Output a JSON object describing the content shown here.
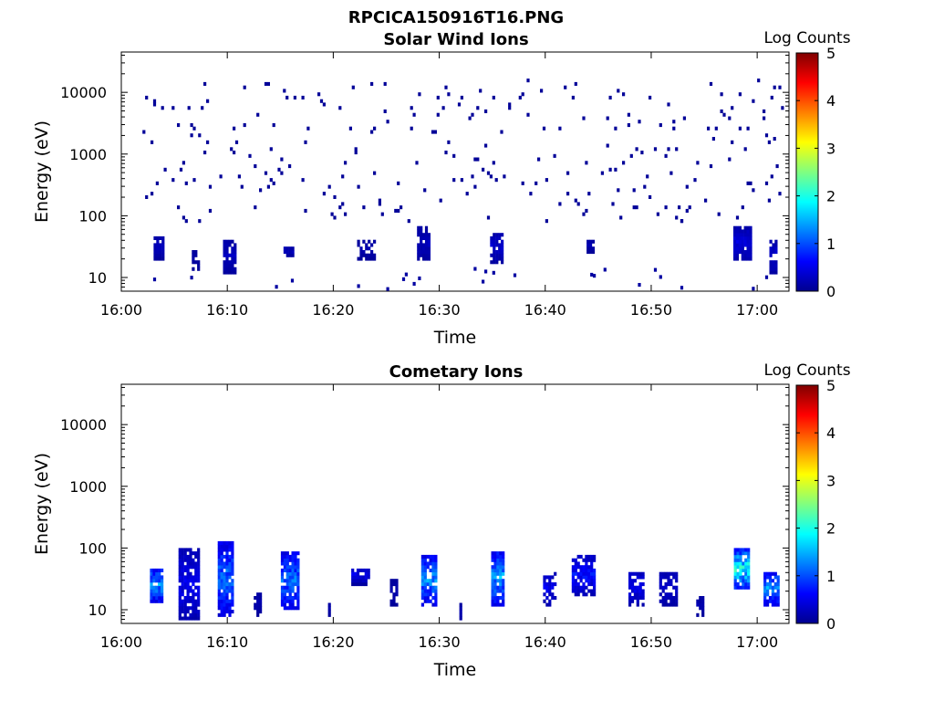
{
  "figure_title": "RPCICA150916T16.PNG",
  "colormap": [
    "#00008f",
    "#0000ff",
    "#0080ff",
    "#00ffff",
    "#80ff80",
    "#ffff00",
    "#ff8000",
    "#ff0000",
    "#800000"
  ],
  "chart_data": [
    {
      "type": "heatmap",
      "title": "Solar Wind Ions",
      "xlabel": "Time",
      "ylabel": "Energy (eV)",
      "colorbar_label": "Log Counts",
      "x_ticks": [
        "16:00",
        "16:10",
        "16:20",
        "16:30",
        "16:40",
        "16:50",
        "17:00"
      ],
      "y_ticks": [
        "10",
        "100",
        "1000",
        "10000"
      ],
      "colorbar_ticks": [
        "0",
        "1",
        "2",
        "3",
        "4",
        "5"
      ],
      "xlim_minutes_after_1600": [
        0,
        63
      ],
      "ylim_eV": [
        6,
        45000
      ],
      "y_scale": "log",
      "clim": [
        0,
        5
      ],
      "scatter_energy_range_eV": [
        80,
        15000
      ],
      "clusters": [
        {
          "t": 3.5,
          "e": [
            20,
            45
          ],
          "w": 0.9,
          "v": 0.3,
          "density": 0.9
        },
        {
          "t": 7.0,
          "e": [
            14,
            28
          ],
          "w": 0.7,
          "v": 0.15,
          "density": 0.6
        },
        {
          "t": 10.1,
          "e": [
            12,
            40
          ],
          "w": 1.0,
          "v": 0.3,
          "density": 0.85
        },
        {
          "t": 15.7,
          "e": [
            22,
            30
          ],
          "w": 0.8,
          "v": 0.3,
          "density": 0.9
        },
        {
          "t": 23.0,
          "e": [
            20,
            40
          ],
          "w": 1.5,
          "v": 0.2,
          "density": 0.6
        },
        {
          "t": 28.5,
          "e": [
            20,
            60
          ],
          "w": 1.2,
          "v": 0.3,
          "density": 0.85
        },
        {
          "t": 35.3,
          "e": [
            18,
            50
          ],
          "w": 1.0,
          "v": 0.4,
          "density": 0.85
        },
        {
          "t": 44.2,
          "e": [
            25,
            40
          ],
          "w": 0.6,
          "v": 0.2,
          "density": 0.8
        },
        {
          "t": 58.5,
          "e": [
            20,
            60
          ],
          "w": 1.5,
          "v": 0.5,
          "density": 0.9
        },
        {
          "t": 61.5,
          "e": [
            12,
            40
          ],
          "w": 0.7,
          "v": 0.4,
          "density": 0.8
        }
      ]
    },
    {
      "type": "heatmap",
      "title": "Cometary Ions",
      "xlabel": "Time",
      "ylabel": "Energy (eV)",
      "colorbar_label": "Log Counts",
      "x_ticks": [
        "16:00",
        "16:10",
        "16:20",
        "16:30",
        "16:40",
        "16:50",
        "17:00"
      ],
      "y_ticks": [
        "10",
        "100",
        "1000",
        "10000"
      ],
      "colorbar_ticks": [
        "0",
        "1",
        "2",
        "3",
        "4",
        "5"
      ],
      "xlim_minutes_after_1600": [
        0,
        63
      ],
      "ylim_eV": [
        6,
        45000
      ],
      "y_scale": "log",
      "clim": [
        0,
        5
      ],
      "clusters": [
        {
          "t": 3.3,
          "e": [
            13,
            45
          ],
          "w": 1.2,
          "v": 1.6,
          "density": 0.95
        },
        {
          "t": 6.3,
          "e": [
            7,
            90
          ],
          "w": 1.8,
          "v": 0.6,
          "density": 0.85
        },
        {
          "t": 9.8,
          "e": [
            8,
            120
          ],
          "w": 1.4,
          "v": 1.3,
          "density": 0.9
        },
        {
          "t": 12.8,
          "e": [
            8,
            18
          ],
          "w": 0.6,
          "v": 0.2,
          "density": 0.7
        },
        {
          "t": 15.8,
          "e": [
            10,
            85
          ],
          "w": 1.5,
          "v": 1.3,
          "density": 0.85
        },
        {
          "t": 19.6,
          "e": [
            8,
            14
          ],
          "w": 0.2,
          "v": 0.2,
          "density": 0.9
        },
        {
          "t": 22.5,
          "e": [
            27,
            45
          ],
          "w": 1.6,
          "v": 0.6,
          "density": 0.9
        },
        {
          "t": 25.7,
          "e": [
            12,
            28
          ],
          "w": 0.7,
          "v": 0.2,
          "density": 0.75
        },
        {
          "t": 29.0,
          "e": [
            12,
            70
          ],
          "w": 1.4,
          "v": 1.5,
          "density": 0.85
        },
        {
          "t": 32.0,
          "e": [
            6,
            12
          ],
          "w": 0.2,
          "v": 0.2,
          "density": 0.9
        },
        {
          "t": 35.5,
          "e": [
            12,
            85
          ],
          "w": 1.2,
          "v": 1.6,
          "density": 0.85
        },
        {
          "t": 40.3,
          "e": [
            12,
            40
          ],
          "w": 1.0,
          "v": 0.6,
          "density": 0.6
        },
        {
          "t": 43.6,
          "e": [
            18,
            70
          ],
          "w": 2.2,
          "v": 0.8,
          "density": 0.75
        },
        {
          "t": 48.5,
          "e": [
            12,
            40
          ],
          "w": 1.3,
          "v": 0.6,
          "density": 0.75
        },
        {
          "t": 51.5,
          "e": [
            12,
            40
          ],
          "w": 1.5,
          "v": 0.4,
          "density": 0.75
        },
        {
          "t": 54.5,
          "e": [
            8,
            16
          ],
          "w": 0.5,
          "v": 0.2,
          "density": 0.8
        },
        {
          "t": 58.5,
          "e": [
            22,
            90
          ],
          "w": 1.4,
          "v": 2.2,
          "density": 0.9
        },
        {
          "t": 61.3,
          "e": [
            12,
            40
          ],
          "w": 1.4,
          "v": 1.5,
          "density": 0.85
        }
      ]
    }
  ]
}
